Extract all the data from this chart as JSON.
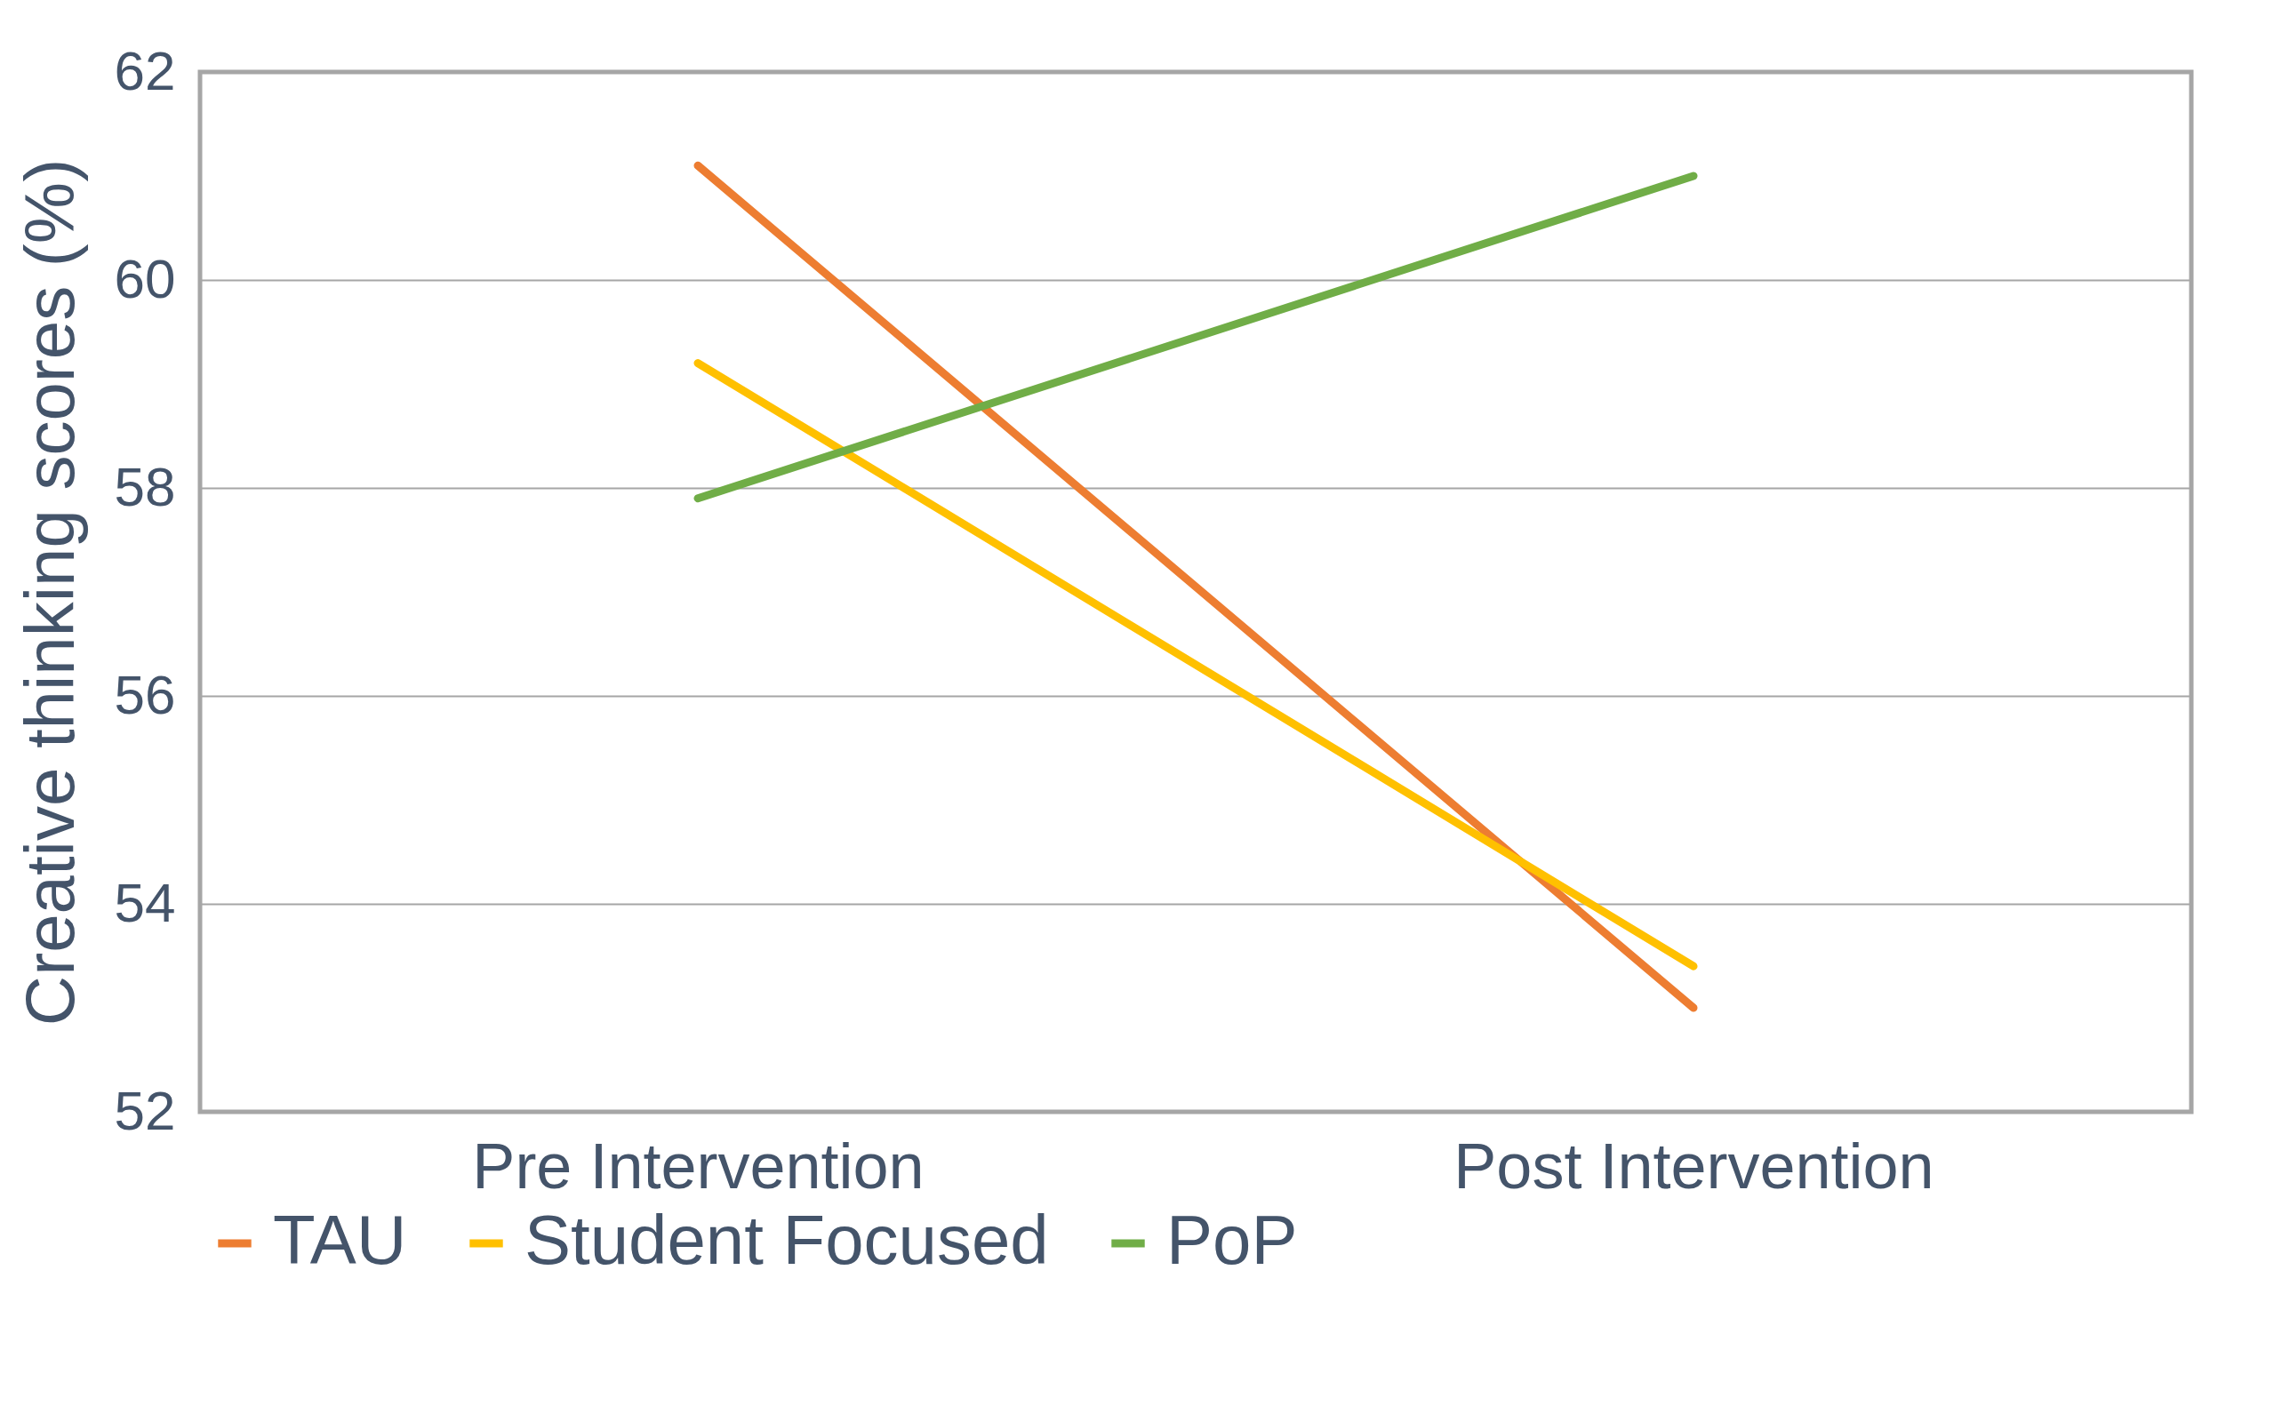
{
  "chart_data": {
    "type": "line",
    "ylabel": "Creative thinking scores (%)",
    "categories": [
      "Pre Intervention",
      "Post Intervention"
    ],
    "series": [
      {
        "name": "TAU",
        "color": "#ed7d31",
        "values": [
          61.1,
          53.0
        ]
      },
      {
        "name": "Student Focused",
        "color": "#ffc000",
        "values": [
          59.2,
          53.4
        ]
      },
      {
        "name": "PoP",
        "color": "#70ad47",
        "values": [
          57.9,
          61.0
        ]
      }
    ],
    "ylim": [
      52,
      62
    ],
    "yticks": [
      52,
      54,
      56,
      58,
      60,
      62
    ],
    "grid": "y",
    "legend": "bottom",
    "marker": "none",
    "line_style": "solid"
  }
}
